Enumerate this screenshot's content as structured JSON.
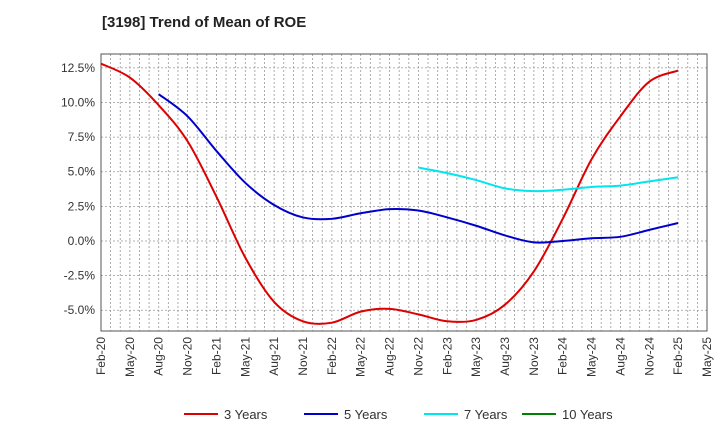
{
  "chart_data": {
    "type": "line",
    "title": "[3198]  Trend of Mean of ROE",
    "xlabel": "",
    "ylabel": "",
    "x_ticks": [
      "Feb-20",
      "May-20",
      "Aug-20",
      "Nov-20",
      "Feb-21",
      "May-21",
      "Aug-21",
      "Nov-21",
      "Feb-22",
      "May-22",
      "Aug-22",
      "Nov-22",
      "Feb-23",
      "May-23",
      "Aug-23",
      "Nov-23",
      "Feb-24",
      "May-24",
      "Aug-24",
      "Nov-24",
      "Feb-25",
      "May-25"
    ],
    "y_ticks": [
      "12.5%",
      "10.0%",
      "7.5%",
      "5.0%",
      "2.5%",
      "0.0%",
      "-2.5%",
      "-5.0%"
    ],
    "ylim": [
      -6.5,
      13.5
    ],
    "grid": true,
    "legend_position": "bottom",
    "colors": {
      "3 Years": "#dd0000",
      "5 Years": "#0000cc",
      "7 Years": "#00e5ee",
      "10 Years": "#008000"
    },
    "series": [
      {
        "name": "3 Years",
        "x": [
          "Feb-20",
          "May-20",
          "Aug-20",
          "Nov-20",
          "Feb-21",
          "May-21",
          "Aug-21",
          "Nov-21",
          "Feb-22",
          "May-22",
          "Aug-22",
          "Nov-22",
          "Feb-23",
          "May-23",
          "Aug-23",
          "Nov-23",
          "Feb-24",
          "May-24",
          "Aug-24",
          "Nov-24",
          "Feb-25"
        ],
        "values": [
          12.8,
          11.8,
          9.8,
          7.2,
          3.2,
          -1.2,
          -4.4,
          -5.8,
          -5.9,
          -5.1,
          -4.9,
          -5.3,
          -5.8,
          -5.7,
          -4.6,
          -2.2,
          1.6,
          5.9,
          9.0,
          11.5,
          12.3
        ]
      },
      {
        "name": "5 Years",
        "x": [
          "Aug-20",
          "Nov-20",
          "Feb-21",
          "May-21",
          "Aug-21",
          "Nov-21",
          "Feb-22",
          "May-22",
          "Aug-22",
          "Nov-22",
          "Feb-23",
          "May-23",
          "Aug-23",
          "Nov-23",
          "Feb-24",
          "May-24",
          "Aug-24",
          "Nov-24",
          "Feb-25"
        ],
        "values": [
          10.6,
          9.0,
          6.5,
          4.2,
          2.6,
          1.7,
          1.6,
          2.0,
          2.3,
          2.2,
          1.7,
          1.1,
          0.4,
          -0.1,
          0.0,
          0.2,
          0.3,
          0.8,
          1.3
        ]
      },
      {
        "name": "7 Years",
        "x": [
          "Nov-22",
          "Feb-23",
          "May-23",
          "Aug-23",
          "Nov-23",
          "Feb-24",
          "May-24",
          "Aug-24",
          "Nov-24",
          "Feb-25"
        ],
        "values": [
          5.3,
          4.9,
          4.4,
          3.8,
          3.6,
          3.7,
          3.9,
          4.0,
          4.3,
          4.6
        ]
      },
      {
        "name": "10 Years",
        "x": [],
        "values": []
      }
    ]
  }
}
